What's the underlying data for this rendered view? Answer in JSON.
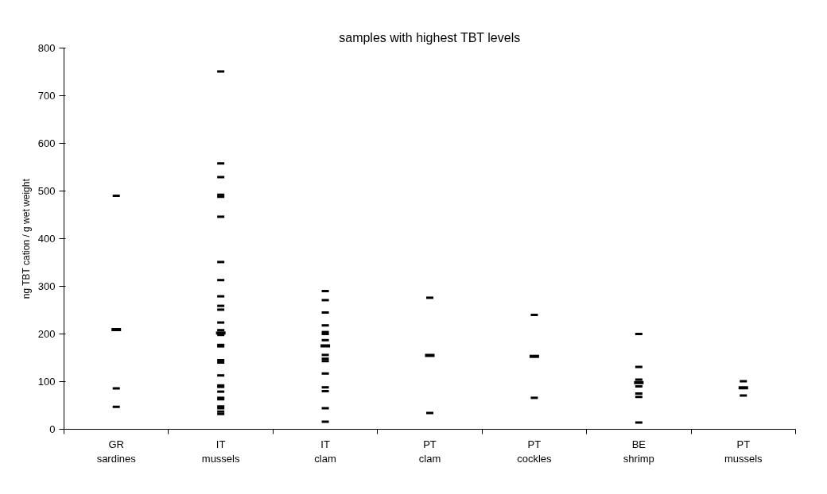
{
  "chart_data": {
    "type": "scatter",
    "title": "samples with highest TBT levels",
    "ylabel": "ng TBT cation / g wet weight",
    "categories": [
      "GR sardines",
      "IT mussels",
      "IT clam",
      "PT clam",
      "PT cockles",
      "BE shrimp",
      "PT mussels"
    ],
    "ylim": [
      0,
      800
    ],
    "yticks": [
      0,
      100,
      200,
      300,
      400,
      500,
      600,
      700,
      800
    ],
    "grid": false,
    "series": [
      {
        "color": "#000000",
        "x": [
          "GR sardines",
          "GR sardines",
          "GR sardines",
          "IT mussels",
          "IT mussels",
          "IT mussels",
          "IT mussels",
          "IT mussels",
          "IT mussels",
          "IT mussels",
          "IT mussels",
          "IT mussels",
          "IT mussels",
          "IT mussels",
          "IT mussels",
          "IT mussels",
          "IT mussels",
          "IT mussels",
          "IT mussels",
          "IT mussels",
          "IT mussels",
          "IT mussels",
          "IT mussels",
          "IT mussels",
          "IT mussels",
          "IT mussels",
          "IT mussels",
          "IT mussels",
          "IT mussels",
          "IT mussels",
          "IT mussels",
          "IT clam",
          "IT clam",
          "IT clam",
          "IT clam",
          "IT clam",
          "IT clam",
          "IT clam",
          "IT clam",
          "IT clam",
          "IT clam",
          "IT clam",
          "IT clam",
          "IT clam",
          "IT clam",
          "IT clam",
          "PT clam",
          "PT clam",
          "PT cockles",
          "PT cockles",
          "BE shrimp",
          "BE shrimp",
          "BE shrimp",
          "BE shrimp",
          "BE shrimp",
          "BE shrimp",
          "BE shrimp",
          "PT mussels",
          "PT mussels"
        ],
        "values": [
          490,
          86,
          47,
          751,
          558,
          529,
          492,
          488,
          446,
          351,
          313,
          279,
          259,
          251,
          224,
          208,
          198,
          177,
          174,
          145,
          140,
          113,
          92,
          89,
          79,
          66,
          63,
          48,
          44,
          37,
          32,
          290,
          271,
          245,
          218,
          204,
          200,
          187,
          156,
          148,
          143,
          117,
          88,
          80,
          44,
          16,
          276,
          34,
          240,
          66,
          200,
          131,
          104,
          90,
          75,
          68,
          14,
          101,
          71
        ]
      },
      {
        "color": "#000000",
        "x": [
          "GR sardines",
          "IT mussels",
          "IT clam",
          "PT clam",
          "PT cockles",
          "BE shrimp",
          "PT mussels"
        ],
        "values": [
          209,
          202,
          175,
          155,
          153,
          98,
          87
        ]
      }
    ]
  }
}
